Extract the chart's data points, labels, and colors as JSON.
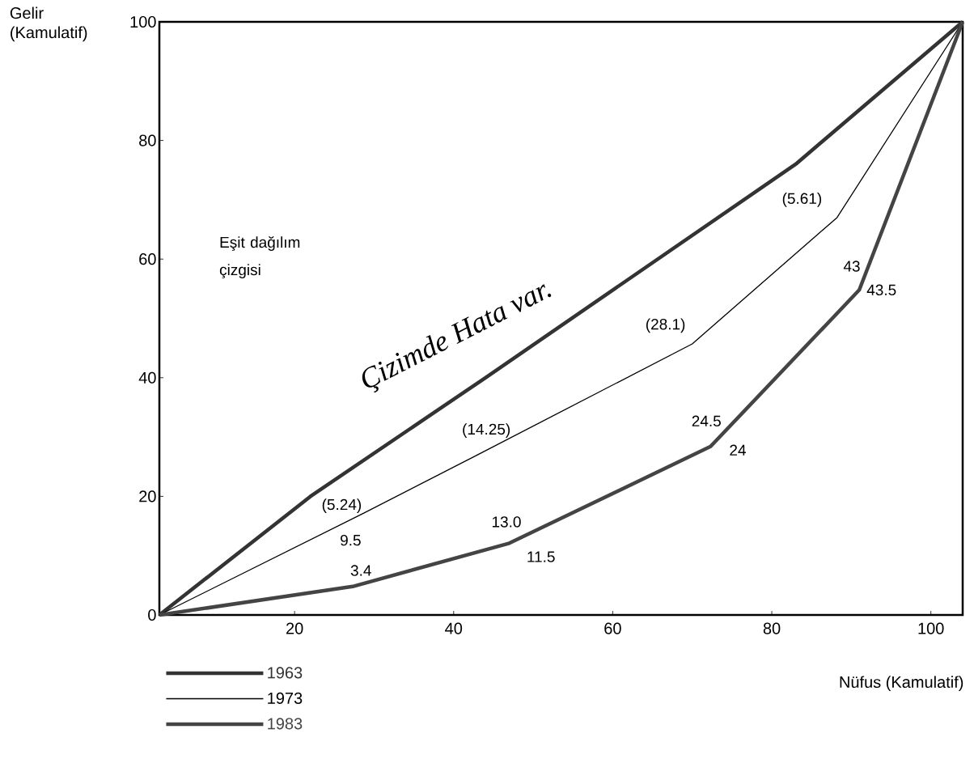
{
  "chart_data": {
    "type": "line",
    "xlabel": "Nüfus (Kamulatif)",
    "ylabel": "Gelir (Kamulatif)",
    "xlim": [
      3,
      104
    ],
    "ylim": [
      0,
      100
    ],
    "xticks": [
      20,
      40,
      60,
      80,
      100
    ],
    "yticks": [
      0,
      20,
      40,
      60,
      80,
      100
    ],
    "legend": "bottom left",
    "grid": false,
    "series": [
      {
        "name": "1963",
        "color": "#333333",
        "x": [
          3,
          22,
          44,
          83,
          104
        ],
        "values": [
          0,
          20,
          40,
          76,
          100
        ]
      },
      {
        "name": "1973",
        "color": "#000000",
        "x": [
          3,
          28.6,
          43,
          70,
          88.2,
          104
        ],
        "values": [
          0,
          17.1,
          27,
          45.7,
          67,
          100
        ]
      },
      {
        "name": "1983",
        "color": "#444444",
        "x": [
          3,
          27.3,
          47,
          72.3,
          91,
          104
        ],
        "values": [
          0,
          4.8,
          12.1,
          28.4,
          54.8,
          100
        ]
      }
    ],
    "annotations": [
      "Eşit dağılım çizgisi",
      "(5.24)",
      "9.5",
      "3.4",
      "(14.25)",
      "13.0",
      "11.5",
      "(28.1)",
      "24.5",
      "24",
      "(5.61)",
      "43",
      "43.5",
      "Çizimde Hata var."
    ]
  }
}
